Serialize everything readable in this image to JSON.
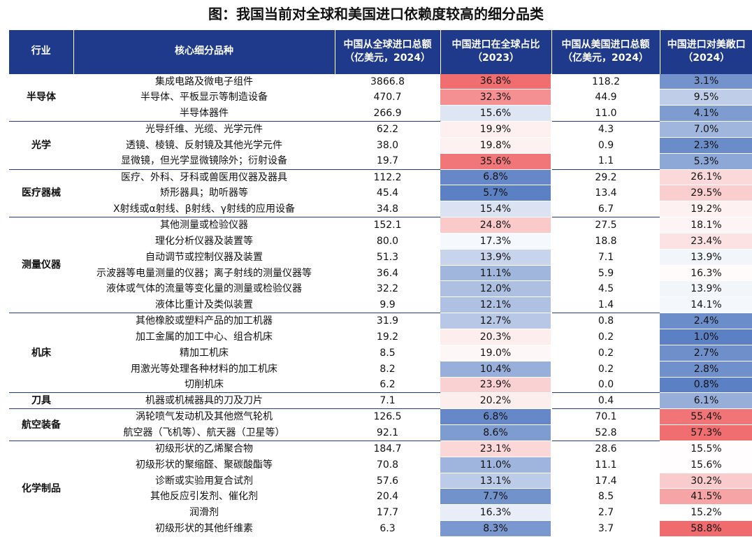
{
  "title": "图：我国当前对全球和美国进口依赖度较高的细分品类",
  "headers": {
    "industry": "行业",
    "product": "核心细分品种",
    "global_import": "中国从全球进口总额\n（亿美元，2024）",
    "global_share": "中国进口在全球占比\n（2023）",
    "us_import": "中国从美国进口总额\n（亿美元，2024）",
    "us_dependency": "中国进口对美敞口\n（2024）"
  },
  "groups": [
    {
      "industry": "半导体",
      "rows": [
        {
          "product": "集成电路及微电子组件",
          "global_import": "3866.8",
          "share": "36.8%",
          "us_import": "118.2",
          "dep": "3.1%"
        },
        {
          "product": "半导体、平板显示等制造设备",
          "global_import": "470.7",
          "share": "32.3%",
          "us_import": "44.9",
          "dep": "9.5%"
        },
        {
          "product": "半导体器件",
          "global_import": "266.9",
          "share": "15.6%",
          "us_import": "11.0",
          "dep": "4.1%"
        }
      ]
    },
    {
      "industry": "光学",
      "rows": [
        {
          "product": "光导纤维、光缆、光学元件",
          "global_import": "62.2",
          "share": "19.9%",
          "us_import": "4.3",
          "dep": "7.0%"
        },
        {
          "product": "透镜、棱镜、反射镜及其他光学元件",
          "global_import": "38.0",
          "share": "19.8%",
          "us_import": "0.9",
          "dep": "2.3%"
        },
        {
          "product": "显微镜，但光学显微镜除外；衍射设备",
          "global_import": "19.7",
          "share": "35.6%",
          "us_import": "1.1",
          "dep": "5.3%"
        }
      ]
    },
    {
      "industry": "医疗器械",
      "rows": [
        {
          "product": "医疗、外科、牙科或兽医用仪器及器具",
          "global_import": "112.2",
          "share": "6.8%",
          "us_import": "29.2",
          "dep": "26.1%"
        },
        {
          "product": "矫形器具；助听器等",
          "global_import": "45.4",
          "share": "5.7%",
          "us_import": "13.4",
          "dep": "29.5%"
        },
        {
          "product": "X射线或α射线、β射线、γ射线的应用设备",
          "global_import": "34.8",
          "share": "15.4%",
          "us_import": "6.7",
          "dep": "19.2%"
        }
      ]
    },
    {
      "industry": "测量仪器",
      "rows": [
        {
          "product": "其他测量或检验仪器",
          "global_import": "152.1",
          "share": "24.8%",
          "us_import": "27.5",
          "dep": "18.1%"
        },
        {
          "product": "理化分析仪器及装置等",
          "global_import": "80.0",
          "share": "17.3%",
          "us_import": "18.8",
          "dep": "23.4%"
        },
        {
          "product": "自动调节或控制仪器及装置",
          "global_import": "51.3",
          "share": "13.9%",
          "us_import": "7.1",
          "dep": "13.9%"
        },
        {
          "product": "示波器等电量测量的仪器；离子射线的测量仪器等",
          "global_import": "36.4",
          "share": "11.1%",
          "us_import": "5.9",
          "dep": "16.3%"
        },
        {
          "product": "液体或气体的流量等变化量的测量或检验仪器",
          "global_import": "32.2",
          "share": "12.0%",
          "us_import": "4.5",
          "dep": "13.9%"
        },
        {
          "product": "液体比重计及类似装置",
          "global_import": "9.9",
          "share": "12.1%",
          "us_import": "1.4",
          "dep": "14.1%"
        }
      ]
    },
    {
      "industry": "机床",
      "rows": [
        {
          "product": "其他橡胶或塑料产品的加工机器",
          "global_import": "31.9",
          "share": "12.7%",
          "us_import": "0.8",
          "dep": "2.4%"
        },
        {
          "product": "加工金属的加工中心、组合机床",
          "global_import": "19.2",
          "share": "20.3%",
          "us_import": "0.2",
          "dep": "1.0%"
        },
        {
          "product": "精加工机床",
          "global_import": "8.5",
          "share": "19.0%",
          "us_import": "0.2",
          "dep": "2.7%"
        },
        {
          "product": "用激光等处理各种材料的加工机床",
          "global_import": "8.2",
          "share": "10.4%",
          "us_import": "0.2",
          "dep": "2.8%"
        },
        {
          "product": "切削机床",
          "global_import": "6.2",
          "share": "23.9%",
          "us_import": "0.0",
          "dep": "0.8%"
        }
      ]
    },
    {
      "industry": "刀具",
      "rows": [
        {
          "product": "机器或机械器具的刀及刀片",
          "global_import": "7.1",
          "share": "20.2%",
          "us_import": "0.4",
          "dep": "6.1%"
        }
      ]
    },
    {
      "industry": "航空装备",
      "rows": [
        {
          "product": "涡轮喷气发动机及其他燃气轮机",
          "global_import": "126.5",
          "share": "6.8%",
          "us_import": "70.1",
          "dep": "55.4%"
        },
        {
          "product": "航空器（飞机等）、航天器（卫星等）",
          "global_import": "92.1",
          "share": "8.6%",
          "us_import": "52.8",
          "dep": "57.3%"
        }
      ]
    },
    {
      "industry": "化学制品",
      "rows": [
        {
          "product": "初级形状的乙烯聚合物",
          "global_import": "184.7",
          "share": "23.1%",
          "us_import": "28.6",
          "dep": "15.5%"
        },
        {
          "product": "初级形状的聚缩醛、聚碳酸酯等",
          "global_import": "70.8",
          "share": "11.0%",
          "us_import": "11.1",
          "dep": "15.6%"
        },
        {
          "product": "诊断或实验用复合试剂",
          "global_import": "57.6",
          "share": "13.1%",
          "us_import": "17.4",
          "dep": "30.2%"
        },
        {
          "product": "其他反应引发剂、催化剂",
          "global_import": "20.4",
          "share": "7.7%",
          "us_import": "8.5",
          "dep": "41.5%"
        },
        {
          "product": "润滑剂",
          "global_import": "17.7",
          "share": "16.3%",
          "us_import": "2.7",
          "dep": "15.2%"
        },
        {
          "product": "初级形状的其他纤维素",
          "global_import": "6.3",
          "share": "8.3%",
          "us_import": "3.7",
          "dep": "58.8%"
        }
      ]
    }
  ],
  "colors": {
    "header_bg": "#1f3a8a",
    "low": "#5b80c4",
    "mid": "#ffffff",
    "high": "#f06b6e"
  }
}
